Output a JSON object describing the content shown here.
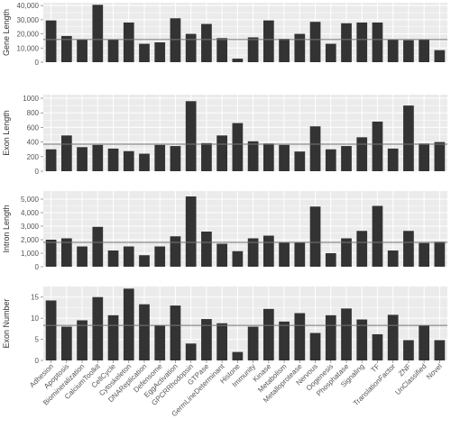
{
  "colors": {
    "panel": "#ebebeb",
    "grid": "#ffffff",
    "bar": "#333333",
    "refline": "#777777",
    "tick": "#555555"
  },
  "chart_data": {
    "type": "bar",
    "categories": [
      "Adhesion",
      "Apoptosis",
      "Biomineralization",
      "CalciumToolkit",
      "CellCycle",
      "Cytoskeleton",
      "DNAReplication",
      "Defensome",
      "EggActivation",
      "GPCRRhodopsin",
      "GTPase",
      "GermLineDeterminant",
      "Histone",
      "Immunity",
      "Kinase",
      "Metabolism",
      "Metalloprotease",
      "Nervous",
      "Oogenesis",
      "Phosphatase",
      "Signaling",
      "TF",
      "TranslationFactor",
      "ZNF",
      "UnClassified",
      "Novel"
    ],
    "panels": [
      {
        "ylabel": "Gene Length",
        "ylim": [
          0,
          42000
        ],
        "ticks": [
          0,
          10000,
          20000,
          30000,
          40000
        ],
        "tick_labels": [
          "0",
          "10,000",
          "20,000",
          "30,000",
          "40,000"
        ],
        "hline": 16000,
        "values": [
          29500,
          18500,
          16000,
          40500,
          16000,
          28000,
          13000,
          14000,
          31000,
          20000,
          27000,
          17000,
          2500,
          17500,
          29500,
          16500,
          20000,
          28500,
          13000,
          27500,
          28000,
          28000,
          16000,
          15500,
          16000,
          8500
        ]
      },
      {
        "ylabel": "Exon Length",
        "ylim": [
          0,
          1050
        ],
        "ticks": [
          0,
          200,
          400,
          600,
          800,
          1000
        ],
        "tick_labels": [
          "0",
          "200",
          "400",
          "600",
          "800",
          "1000"
        ],
        "hline": 370,
        "values": [
          300,
          490,
          330,
          360,
          310,
          275,
          240,
          360,
          345,
          960,
          385,
          490,
          660,
          410,
          380,
          360,
          270,
          615,
          300,
          345,
          465,
          680,
          310,
          900,
          380,
          400
        ]
      },
      {
        "ylabel": "Intron Length",
        "ylim": [
          0,
          5600
        ],
        "ticks": [
          0,
          1000,
          2000,
          3000,
          4000,
          5000
        ],
        "tick_labels": [
          "0",
          "1,000",
          "2,000",
          "3,000",
          "4,000",
          "5,000"
        ],
        "hline": 1800,
        "values": [
          2000,
          2100,
          1500,
          2950,
          1200,
          1500,
          850,
          1500,
          2250,
          5200,
          2600,
          1700,
          1150,
          2100,
          2300,
          1800,
          1800,
          4450,
          1000,
          2100,
          2650,
          4500,
          1200,
          2650,
          1750,
          1850
        ]
      },
      {
        "ylabel": "Exon Number",
        "ylim": [
          0,
          17.5
        ],
        "ticks": [
          0,
          5,
          10,
          15
        ],
        "tick_labels": [
          "0",
          "5",
          "10",
          "15"
        ],
        "hline": 8.3,
        "values": [
          14.2,
          8.0,
          9.5,
          15.0,
          10.7,
          17.0,
          13.3,
          8.3,
          13.0,
          4.0,
          9.8,
          8.8,
          2.0,
          8.0,
          12.2,
          9.2,
          11.2,
          6.5,
          10.7,
          12.3,
          9.7,
          6.2,
          10.8,
          4.8,
          8.3,
          4.8
        ]
      }
    ]
  }
}
